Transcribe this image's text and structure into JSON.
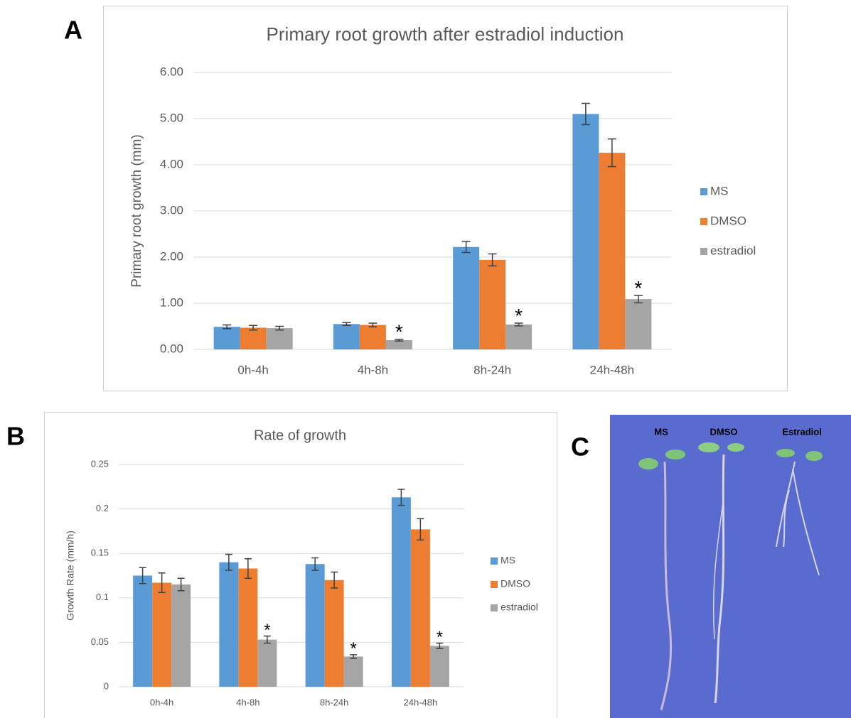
{
  "figure": {
    "panel_labels": [
      "A",
      "B",
      "C"
    ],
    "photo_labels": [
      "MS",
      "DMSO",
      "Estradiol"
    ]
  },
  "chart_data": [
    {
      "type": "bar",
      "title": "Primary root growth after estradiol induction",
      "y_label": "Primary root growth (mm)",
      "categories": [
        "0h-4h",
        "4h-8h",
        "8h-24h",
        "24h-48h"
      ],
      "series": [
        {
          "name": "MS",
          "color": "#5b9bd5",
          "values": [
            0.49,
            0.55,
            2.22,
            5.1
          ],
          "errors": [
            0.04,
            0.03,
            0.12,
            0.23
          ],
          "marker_labels": [
            null,
            null,
            null,
            null
          ]
        },
        {
          "name": "DMSO",
          "color": "#ed7d31",
          "values": [
            0.47,
            0.53,
            1.94,
            4.26
          ],
          "errors": [
            0.05,
            0.04,
            0.13,
            0.3
          ],
          "marker_labels": [
            null,
            null,
            null,
            null
          ]
        },
        {
          "name": "estradiol",
          "color": "#a5a5a5",
          "values": [
            0.46,
            0.2,
            0.54,
            1.09
          ],
          "errors": [
            0.04,
            0.02,
            0.03,
            0.08
          ],
          "marker_labels": [
            null,
            "*",
            "*",
            "*"
          ]
        }
      ],
      "ylim": [
        0,
        6
      ],
      "yticks": [
        {
          "value": 0,
          "label": "0.00"
        },
        {
          "value": 1,
          "label": "1.00"
        },
        {
          "value": 2,
          "label": "2.00"
        },
        {
          "value": 3,
          "label": "3.00"
        },
        {
          "value": 4,
          "label": "4.00"
        },
        {
          "value": 5,
          "label": "5.00"
        },
        {
          "value": 6,
          "label": "6.00"
        }
      ],
      "grid": true,
      "legend": "right"
    },
    {
      "type": "bar",
      "title": "Rate of growth",
      "y_label": "Growth Rate (mm/h)",
      "categories": [
        "0h-4h",
        "4h-8h",
        "8h-24h",
        "24h-48h"
      ],
      "series": [
        {
          "name": "MS",
          "color": "#5b9bd5",
          "values": [
            0.125,
            0.14,
            0.138,
            0.213
          ],
          "errors": [
            0.009,
            0.009,
            0.007,
            0.009
          ],
          "marker_labels": [
            null,
            null,
            null,
            null
          ]
        },
        {
          "name": "DMSO",
          "color": "#ed7d31",
          "values": [
            0.117,
            0.133,
            0.12,
            0.177
          ],
          "errors": [
            0.011,
            0.011,
            0.009,
            0.012
          ],
          "marker_labels": [
            null,
            null,
            null,
            null
          ]
        },
        {
          "name": "estradiol",
          "color": "#a5a5a5",
          "values": [
            0.115,
            0.053,
            0.034,
            0.046
          ],
          "errors": [
            0.007,
            0.004,
            0.002,
            0.003
          ],
          "marker_labels": [
            null,
            "*",
            "*",
            "*"
          ]
        }
      ],
      "ylim": [
        0,
        0.25
      ],
      "yticks": [
        0,
        0.05,
        0.1,
        0.15,
        0.2,
        0.25
      ],
      "grid": true,
      "legend": "right"
    }
  ]
}
